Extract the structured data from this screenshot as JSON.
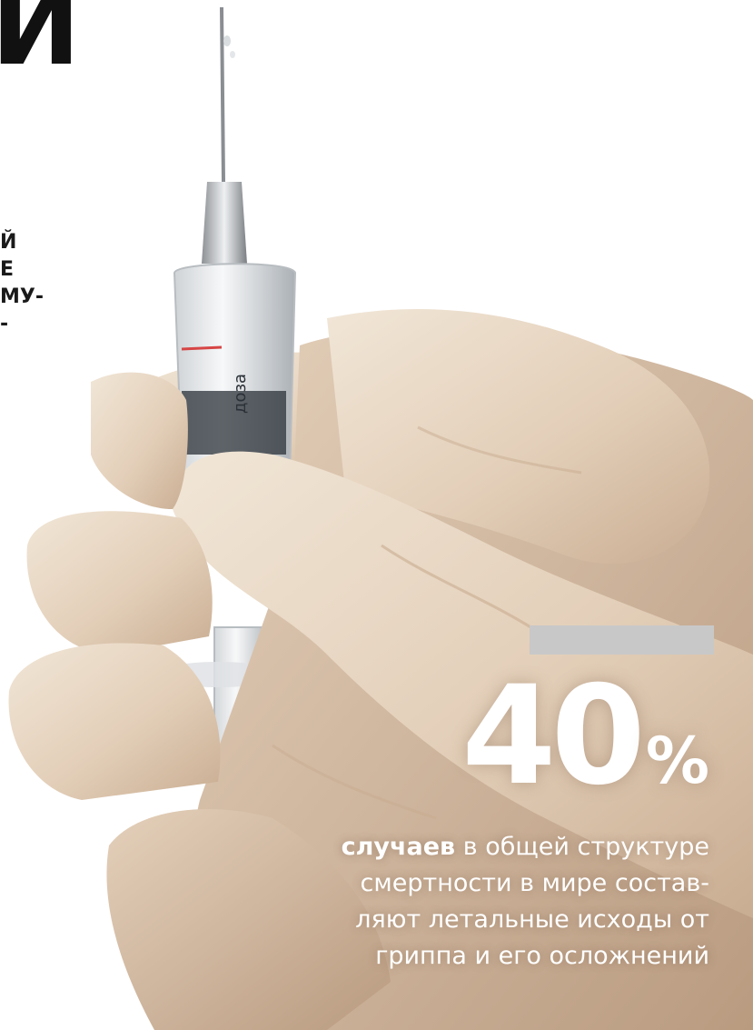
{
  "headline": {
    "fragment": "И"
  },
  "lead": {
    "lines": [
      "Й",
      "Е",
      "МУ-",
      "-"
    ]
  },
  "stat": {
    "value": "40",
    "unit": "%"
  },
  "caption": {
    "bold": "случаев",
    "lines": [
      " в общей структуре",
      "смертности в мире состав-",
      "ляют летальные исходы от",
      "гриппа и его осложнений"
    ]
  },
  "photo": {
    "syringe_label": "доза",
    "colors": {
      "glove": "#e7d6c2",
      "background": "#ffffff",
      "accent_bar": "#c8c8c8"
    }
  }
}
